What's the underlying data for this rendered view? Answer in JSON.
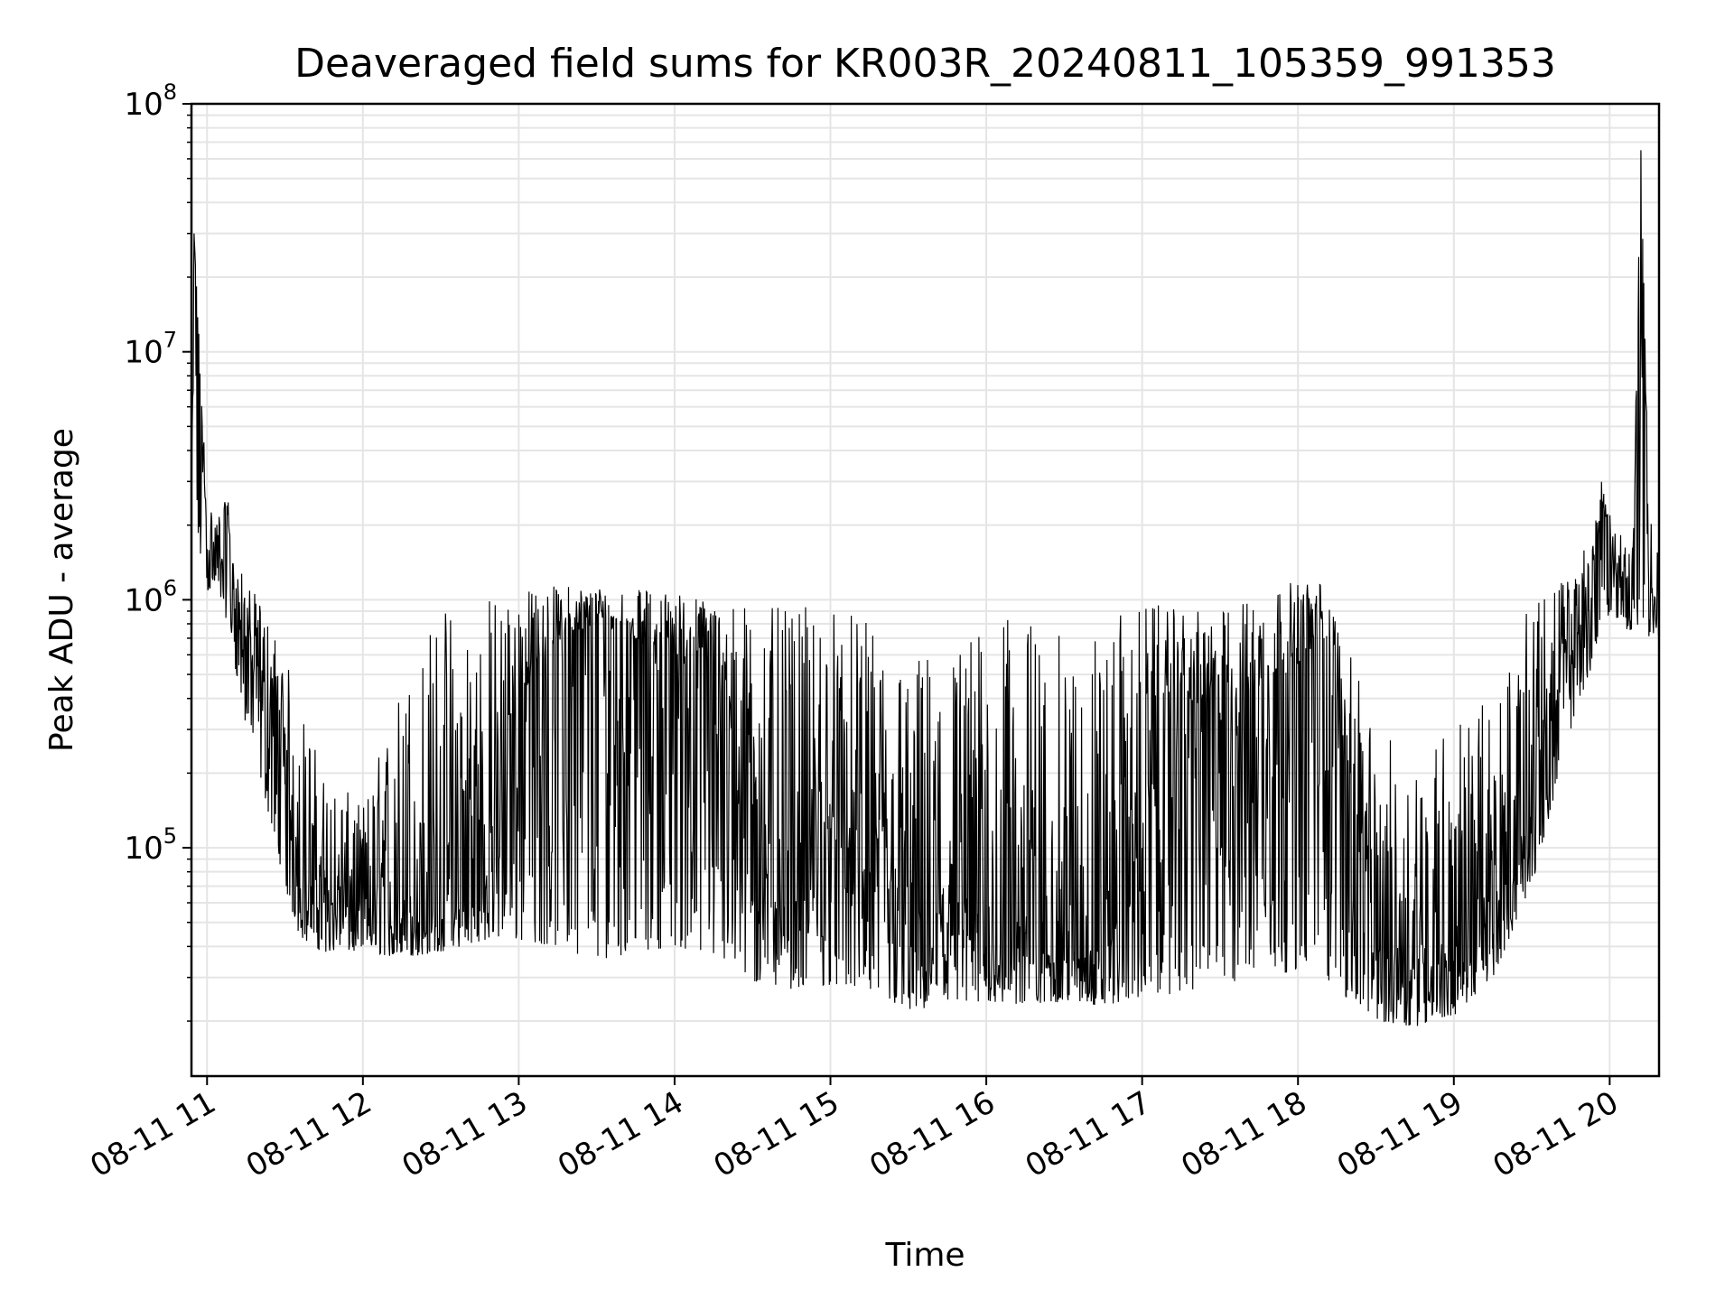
{
  "chart_data": {
    "type": "line",
    "title": "Deaveraged field sums for KR003R_20240811_105359_991353",
    "xlabel": "Time",
    "ylabel": "Peak ADU - average",
    "yscale": "log",
    "ylim": [
      12000,
      100000000
    ],
    "xlim": [
      "08-11 10:54",
      "08-11 20:19"
    ],
    "grid": true,
    "line_color": "#000000",
    "grid_color": "#e5e5e5",
    "x_ticks": [
      "08-11 11",
      "08-11 12",
      "08-11 13",
      "08-11 14",
      "08-11 15",
      "08-11 16",
      "08-11 17",
      "08-11 18",
      "08-11 19",
      "08-11 20"
    ],
    "y_ticks": [
      {
        "base": "10",
        "exp": "5",
        "value": 100000
      },
      {
        "base": "10",
        "exp": "6",
        "value": 1000000
      },
      {
        "base": "10",
        "exp": "7",
        "value": 10000000
      },
      {
        "base": "10",
        "exp": "8",
        "value": 100000000
      }
    ],
    "series": [
      {
        "x": [
          "08-11 10:54",
          "08-11 10:55",
          "08-11 11:00",
          "08-11 11:05",
          "08-11 11:08",
          "08-11 11:10",
          "08-11 11:15",
          "08-11 11:20",
          "08-11 11:25",
          "08-11 11:30",
          "08-11 11:35",
          "08-11 11:40",
          "08-11 11:45",
          "08-11 12:00",
          "08-11 12:15",
          "08-11 12:30",
          "08-11 12:45",
          "08-11 13:00",
          "08-11 13:15",
          "08-11 13:30",
          "08-11 13:45",
          "08-11 14:00",
          "08-11 14:15",
          "08-11 14:30",
          "08-11 14:45",
          "08-11 15:00",
          "08-11 15:15",
          "08-11 15:30",
          "08-11 15:45",
          "08-11 16:00",
          "08-11 16:15",
          "08-11 16:30",
          "08-11 16:45",
          "08-11 17:00",
          "08-11 17:15",
          "08-11 17:30",
          "08-11 17:45",
          "08-11 18:00",
          "08-11 18:10",
          "08-11 18:20",
          "08-11 18:30",
          "08-11 18:45",
          "08-11 19:00",
          "08-11 19:15",
          "08-11 19:30",
          "08-11 19:45",
          "08-11 19:52",
          "08-11 19:57",
          "08-11 20:00",
          "08-11 20:05",
          "08-11 20:09",
          "08-11 20:12",
          "08-11 20:15",
          "08-11 20:19"
        ],
        "y": [
          1400000,
          30000000,
          1600000,
          1500000,
          2200000,
          1100000,
          700000,
          500000,
          300000,
          180000,
          90000,
          70000,
          60000,
          55000,
          52000,
          55000,
          60000,
          400000,
          700000,
          800000,
          700000,
          600000,
          550000,
          150000,
          60000,
          120000,
          80000,
          40000,
          50000,
          40000,
          45000,
          35000,
          40000,
          100000,
          400000,
          350000,
          450000,
          550000,
          700000,
          200000,
          35000,
          40000,
          35000,
          45000,
          150000,
          600000,
          900000,
          2500000,
          1500000,
          1300000,
          1000000,
          65000000,
          1200000,
          900000
        ],
        "envelope_low": [
          1000000,
          1200000,
          1100000,
          1000000,
          800000,
          600000,
          300000,
          200000,
          120000,
          70000,
          45000,
          40000,
          38000,
          38000,
          36000,
          38000,
          42000,
          42000,
          40000,
          35000,
          38000,
          40000,
          35000,
          28000,
          27000,
          28000,
          26000,
          22000,
          22000,
          24000,
          23000,
          24000,
          23000,
          25000,
          26000,
          27000,
          30000,
          32000,
          30000,
          24000,
          20000,
          19000,
          21000,
          30000,
          70000,
          300000,
          500000,
          700000,
          900000,
          800000,
          700000,
          700000,
          700000,
          700000
        ],
        "envelope_high": [
          2500000,
          30000000,
          2500000,
          2300000,
          2600000,
          1500000,
          1200000,
          1000000,
          800000,
          600000,
          400000,
          300000,
          200000,
          150000,
          500000,
          1000000,
          1100000,
          1100000,
          1150000,
          1150000,
          1100000,
          1100000,
          1000000,
          1000000,
          900000,
          1000000,
          800000,
          600000,
          700000,
          800000,
          900000,
          700000,
          800000,
          1000000,
          900000,
          900000,
          1100000,
          1200000,
          1200000,
          600000,
          300000,
          250000,
          350000,
          400000,
          1000000,
          1300000,
          1800000,
          3200000,
          2200000,
          2000000,
          1800000,
          65000000,
          2500000,
          1500000
        ]
      }
    ]
  }
}
